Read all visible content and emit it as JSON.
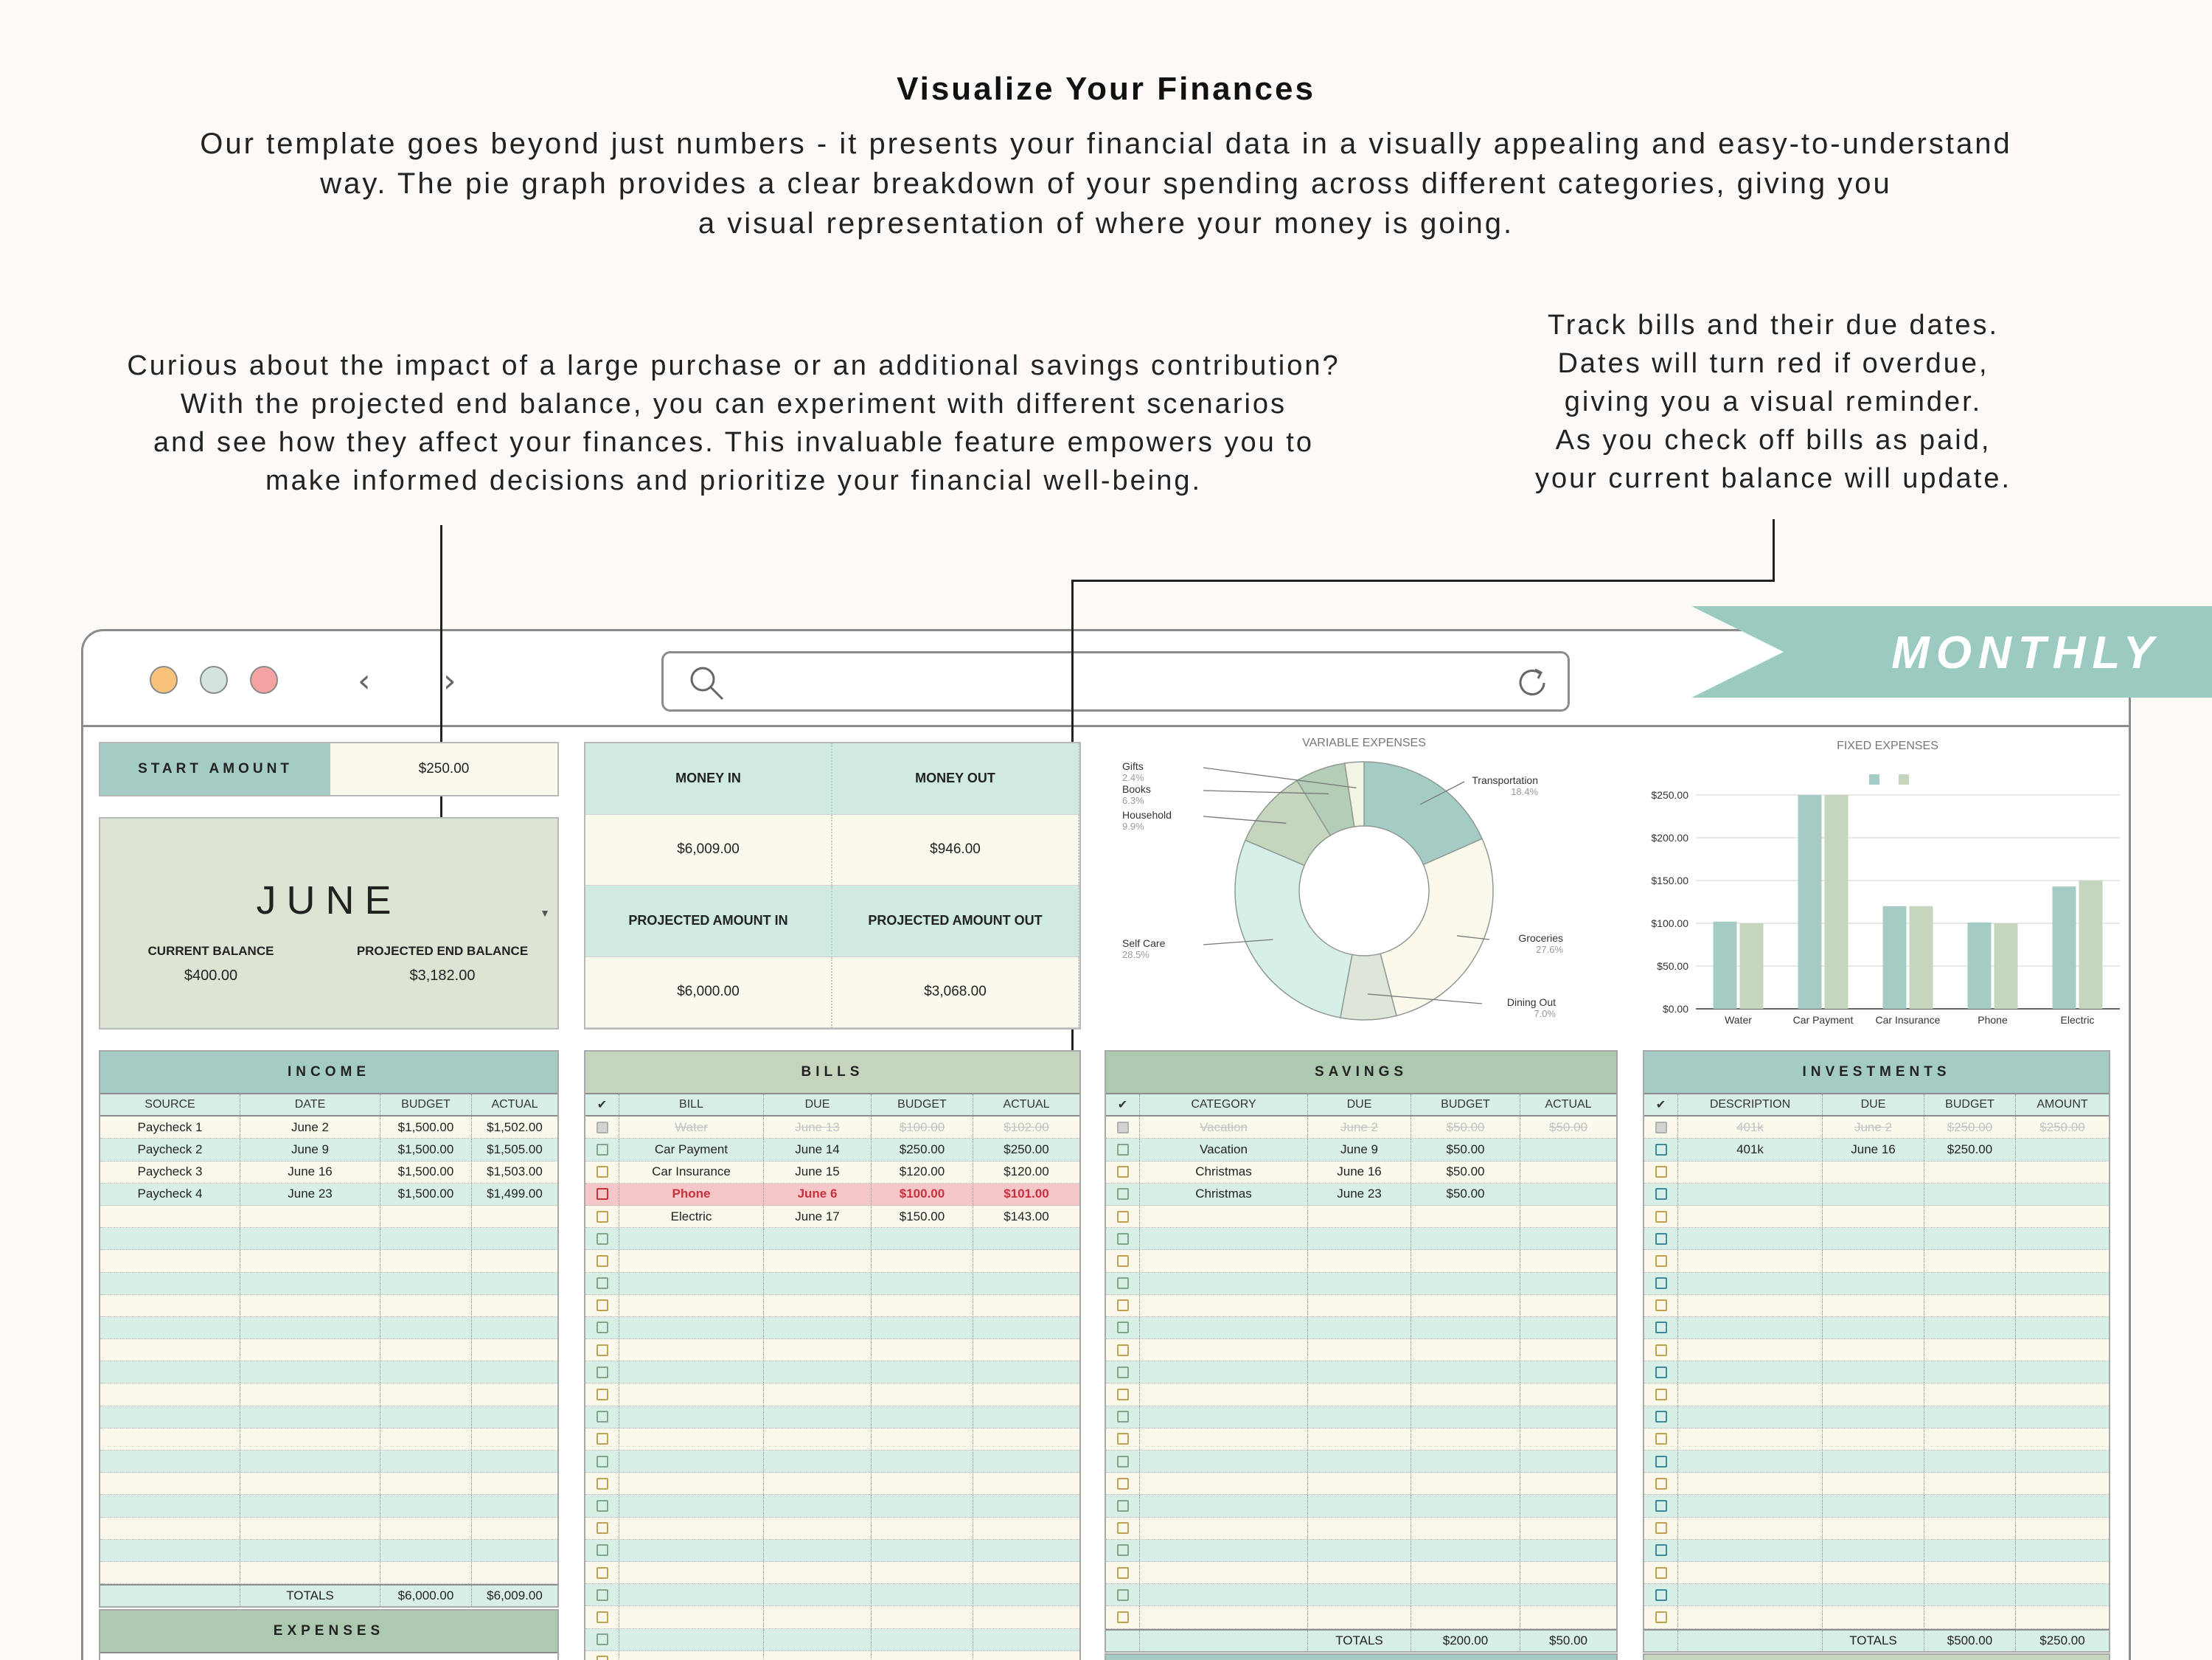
{
  "intro": {
    "title": "Visualize Your Finances",
    "lines": [
      "Our template goes beyond just numbers - it presents your financial data in a visually appealing and easy-to-understand",
      "way. The pie graph provides a clear breakdown of your spending across different categories, giving you",
      "a visual representation of where your money is going."
    ]
  },
  "notes": {
    "left": [
      "Curious about the impact of a large purchase or an additional savings contribution?",
      "With the projected end balance, you can experiment with different scenarios",
      "and see how they affect your finances. This invaluable feature empowers you to",
      "make informed decisions and prioritize your financial well-being."
    ],
    "right": [
      "Track bills and their due dates.",
      "Dates will turn red if overdue,",
      "giving you a visual reminder.",
      "As you check off bills as paid,",
      "your current balance will update."
    ]
  },
  "ribbon": "MONTHLY",
  "start": {
    "label": "START AMOUNT",
    "value": "$250.00"
  },
  "month": {
    "name": "JUNE",
    "current_label": "CURRENT BALANCE",
    "current_value": "$400.00",
    "projected_label": "PROJECTED END BALANCE",
    "projected_value": "$3,182.00"
  },
  "money": {
    "in_label": "MONEY IN",
    "out_label": "MONEY OUT",
    "in_value": "$6,009.00",
    "out_value": "$946.00",
    "proj_in_label": "PROJECTED AMOUNT IN",
    "proj_out_label": "PROJECTED AMOUNT OUT",
    "proj_in_value": "$6,000.00",
    "proj_out_value": "$3,068.00"
  },
  "colors": {
    "teal": "#a5ccc4",
    "sage": "#c5d5bd",
    "cream": "#fbf9ec",
    "mint": "#d8efe8",
    "overdue": "#f5c7c9",
    "ribbon": "#9bcbc0"
  },
  "chart_data": [
    {
      "type": "pie",
      "title": "VARIABLE EXPENSES",
      "slices": [
        {
          "label": "Transportation",
          "pct": "18.4%",
          "value": 18.4,
          "color": "#a5ccc4"
        },
        {
          "label": "Groceries",
          "pct": "27.6%",
          "value": 27.6,
          "color": "#fbf9ec"
        },
        {
          "label": "Dining Out",
          "pct": "7.0%",
          "value": 7.0,
          "color": "#dde6d8"
        },
        {
          "label": "Self Care",
          "pct": "28.5%",
          "value": 28.5,
          "color": "#d6efe8"
        },
        {
          "label": "Household",
          "pct": "9.9%",
          "value": 9.9,
          "color": "#c6d5bd"
        },
        {
          "label": "Books",
          "pct": "6.3%",
          "value": 6.3,
          "color": "#b3cdb7"
        },
        {
          "label": "Gifts",
          "pct": "2.4%",
          "value": 2.4,
          "color": "#f2f4e4"
        }
      ]
    },
    {
      "type": "bar",
      "title": "FIXED EXPENSES",
      "categories": [
        "Water",
        "Car Payment",
        "Car Insurance",
        "Phone",
        "Electric"
      ],
      "series": [
        {
          "values": [
            102,
            250,
            120,
            101,
            143
          ],
          "color": "#a5ccc4"
        },
        {
          "values": [
            100,
            250,
            120,
            100,
            150
          ],
          "color": "#c6d5bd"
        }
      ],
      "yticks": [
        "$0.00",
        "$50.00",
        "$100.00",
        "$150.00",
        "$200.00",
        "$250.00"
      ],
      "ylim": [
        0,
        250
      ]
    }
  ],
  "income": {
    "title": "INCOME",
    "headers": [
      "SOURCE",
      "DATE",
      "BUDGET",
      "ACTUAL"
    ],
    "rows": [
      [
        "Paycheck 1",
        "June 2",
        "$1,500.00",
        "$1,502.00"
      ],
      [
        "Paycheck 2",
        "June 9",
        "$1,500.00",
        "$1,505.00"
      ],
      [
        "Paycheck 3",
        "June 16",
        "$1,500.00",
        "$1,503.00"
      ],
      [
        "Paycheck 4",
        "June 23",
        "$1,500.00",
        "$1,499.00"
      ]
    ],
    "totals": [
      "",
      "TOTALS",
      "$6,000.00",
      "$6,009.00"
    ]
  },
  "expenses": {
    "title": "EXPENSES"
  },
  "bills": {
    "title": "BILLS",
    "headers": [
      "✔",
      "BILL",
      "DUE",
      "BUDGET",
      "ACTUAL"
    ],
    "rows": [
      {
        "cells": [
          "Water",
          "June 13",
          "$100.00",
          "$102.00"
        ],
        "state": "done"
      },
      {
        "cells": [
          "Car Payment",
          "June 14",
          "$250.00",
          "$250.00"
        ],
        "state": ""
      },
      {
        "cells": [
          "Car Insurance",
          "June 15",
          "$120.00",
          "$120.00"
        ],
        "state": ""
      },
      {
        "cells": [
          "Phone",
          "June 6",
          "$100.00",
          "$101.00"
        ],
        "state": "overdue"
      },
      {
        "cells": [
          "Electric",
          "June 17",
          "$150.00",
          "$143.00"
        ],
        "state": ""
      }
    ]
  },
  "savings": {
    "title": "SAVINGS",
    "headers": [
      "✔",
      "CATEGORY",
      "DUE",
      "BUDGET",
      "ACTUAL"
    ],
    "rows": [
      {
        "cells": [
          "Vacation",
          "June 2",
          "$50.00",
          "$50.00"
        ],
        "state": "done"
      },
      {
        "cells": [
          "Vacation",
          "June 9",
          "$50.00",
          ""
        ],
        "state": ""
      },
      {
        "cells": [
          "Christmas",
          "June 16",
          "$50.00",
          ""
        ],
        "state": ""
      },
      {
        "cells": [
          "Christmas",
          "June 23",
          "$50.00",
          ""
        ],
        "state": ""
      }
    ],
    "totals": [
      "",
      "",
      "TOTALS",
      "$200.00",
      "$50.00"
    ]
  },
  "investments": {
    "title": "INVESTMENTS",
    "headers": [
      "✔",
      "DESCRIPTION",
      "DUE",
      "BUDGET",
      "AMOUNT"
    ],
    "rows": [
      {
        "cells": [
          "401k",
          "June 2",
          "$250.00",
          "$250.00"
        ],
        "state": "done"
      },
      {
        "cells": [
          "401k",
          "June 16",
          "$250.00",
          ""
        ],
        "state": ""
      }
    ],
    "totals": [
      "",
      "",
      "TOTALS",
      "$500.00",
      "$250.00"
    ]
  }
}
